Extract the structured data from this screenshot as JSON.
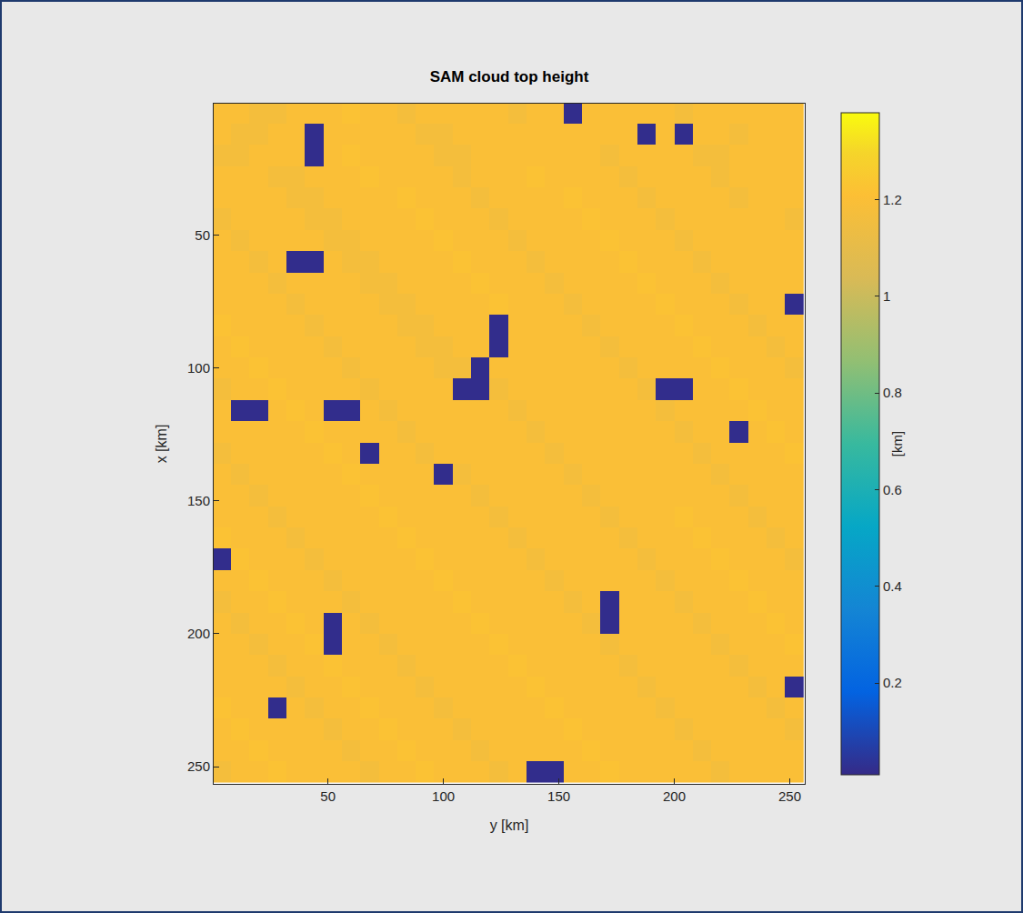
{
  "chart_data": {
    "type": "heatmap",
    "title": "SAM cloud top height",
    "xlabel": "y [km]",
    "ylabel": "x [km]",
    "xlim": [
      0.5,
      256.5
    ],
    "ylim": [
      256.5,
      0.5
    ],
    "xticks": [
      50,
      100,
      150,
      200,
      250
    ],
    "yticks": [
      50,
      100,
      150,
      200,
      250
    ],
    "x": [
      4,
      12,
      20,
      28,
      36,
      44,
      52,
      60,
      68,
      76,
      84,
      92,
      100,
      108,
      116,
      124,
      132,
      140,
      148,
      156,
      164,
      172,
      180,
      188,
      196,
      204,
      212,
      220,
      228,
      236,
      244,
      252
    ],
    "y": [
      4,
      12,
      20,
      28,
      36,
      44,
      52,
      60,
      68,
      76,
      84,
      92,
      100,
      108,
      116,
      124,
      132,
      140,
      148,
      156,
      164,
      172,
      180,
      188,
      196,
      204,
      212,
      220,
      228,
      236,
      244,
      252
    ],
    "cells": [
      [
        1.2,
        1.2,
        1.17,
        1.17,
        1.2,
        1.2,
        1.2,
        1.22,
        1.2,
        1.2,
        1.17,
        1.2,
        1.2,
        1.2,
        1.2,
        1.2,
        1.17,
        1.2,
        1.2,
        0.02,
        1.2,
        1.2,
        1.2,
        1.2,
        1.2,
        1.17,
        1.2,
        1.2,
        1.2,
        1.2,
        1.2,
        1.2
      ],
      [
        1.2,
        1.17,
        1.17,
        1.2,
        1.2,
        0.02,
        1.2,
        1.2,
        1.2,
        1.2,
        1.2,
        1.17,
        1.17,
        1.2,
        1.2,
        1.2,
        1.2,
        1.2,
        1.2,
        1.2,
        1.2,
        1.2,
        1.2,
        0.02,
        1.2,
        0.02,
        1.2,
        1.2,
        1.17,
        1.2,
        1.2,
        1.2
      ],
      [
        1.17,
        1.17,
        1.2,
        1.2,
        1.2,
        0.02,
        1.2,
        1.22,
        1.2,
        1.2,
        1.2,
        1.2,
        1.17,
        1.17,
        1.2,
        1.2,
        1.2,
        1.2,
        1.2,
        1.2,
        1.2,
        1.17,
        1.2,
        1.2,
        1.2,
        1.2,
        1.17,
        1.17,
        1.2,
        1.2,
        1.2,
        1.2
      ],
      [
        1.2,
        1.2,
        1.2,
        1.17,
        1.17,
        1.2,
        1.2,
        1.2,
        1.22,
        1.2,
        1.2,
        1.2,
        1.2,
        1.17,
        1.2,
        1.2,
        1.2,
        1.22,
        1.2,
        1.2,
        1.2,
        1.2,
        1.17,
        1.2,
        1.2,
        1.2,
        1.2,
        1.17,
        1.2,
        1.2,
        1.2,
        1.2
      ],
      [
        1.2,
        1.2,
        1.2,
        1.2,
        1.17,
        1.17,
        1.2,
        1.2,
        1.2,
        1.2,
        1.22,
        1.2,
        1.2,
        1.2,
        1.17,
        1.2,
        1.2,
        1.2,
        1.2,
        1.22,
        1.2,
        1.2,
        1.2,
        1.17,
        1.2,
        1.2,
        1.2,
        1.2,
        1.17,
        1.2,
        1.2,
        1.2
      ],
      [
        1.17,
        1.2,
        1.2,
        1.2,
        1.2,
        1.17,
        1.17,
        1.2,
        1.2,
        1.2,
        1.2,
        1.22,
        1.2,
        1.2,
        1.2,
        1.17,
        1.2,
        1.2,
        1.2,
        1.2,
        1.22,
        1.2,
        1.2,
        1.2,
        1.17,
        1.2,
        1.2,
        1.2,
        1.2,
        1.2,
        1.2,
        1.17
      ],
      [
        1.2,
        1.17,
        1.2,
        1.2,
        1.2,
        1.2,
        1.17,
        1.17,
        1.2,
        1.2,
        1.2,
        1.2,
        1.22,
        1.2,
        1.2,
        1.2,
        1.17,
        1.2,
        1.2,
        1.2,
        1.2,
        1.22,
        1.2,
        1.2,
        1.2,
        1.17,
        1.2,
        1.2,
        1.2,
        1.2,
        1.2,
        1.2
      ],
      [
        1.2,
        1.2,
        1.17,
        1.2,
        0.02,
        0.02,
        1.2,
        1.17,
        1.17,
        1.2,
        1.2,
        1.2,
        1.2,
        1.22,
        1.2,
        1.2,
        1.2,
        1.17,
        1.2,
        1.2,
        1.2,
        1.2,
        1.22,
        1.2,
        1.2,
        1.2,
        1.17,
        1.2,
        1.2,
        1.2,
        1.2,
        1.2
      ],
      [
        1.2,
        1.2,
        1.2,
        1.17,
        1.2,
        1.2,
        1.2,
        1.2,
        1.17,
        1.17,
        1.2,
        1.2,
        1.2,
        1.2,
        1.22,
        1.2,
        1.2,
        1.2,
        1.17,
        1.2,
        1.2,
        1.2,
        1.2,
        1.22,
        1.2,
        1.2,
        1.2,
        1.17,
        1.2,
        1.2,
        1.2,
        1.2
      ],
      [
        1.2,
        1.2,
        1.2,
        1.2,
        1.17,
        1.2,
        1.2,
        1.2,
        1.2,
        1.17,
        1.17,
        1.2,
        1.2,
        1.2,
        1.2,
        1.22,
        1.2,
        1.2,
        1.2,
        1.17,
        1.2,
        1.2,
        1.2,
        1.2,
        1.22,
        1.2,
        1.2,
        1.2,
        1.17,
        1.2,
        1.2,
        0.02
      ],
      [
        1.22,
        1.2,
        1.2,
        1.2,
        1.2,
        1.17,
        1.2,
        1.2,
        1.2,
        1.2,
        1.17,
        1.17,
        1.2,
        1.2,
        1.2,
        0.02,
        1.2,
        1.2,
        1.2,
        1.2,
        1.17,
        1.2,
        1.2,
        1.2,
        1.2,
        1.22,
        1.2,
        1.2,
        1.2,
        1.17,
        1.2,
        1.2
      ],
      [
        1.2,
        1.22,
        1.2,
        1.2,
        1.2,
        1.2,
        1.17,
        1.2,
        1.2,
        1.2,
        1.2,
        1.17,
        1.17,
        1.2,
        1.2,
        0.02,
        1.2,
        1.2,
        1.2,
        1.2,
        1.2,
        1.17,
        1.2,
        1.2,
        1.2,
        1.2,
        1.22,
        1.2,
        1.2,
        1.2,
        1.17,
        1.2
      ],
      [
        1.2,
        1.2,
        1.22,
        1.2,
        1.2,
        1.2,
        1.2,
        1.17,
        1.2,
        1.2,
        1.2,
        1.2,
        1.17,
        1.17,
        0.02,
        1.2,
        1.2,
        1.2,
        1.2,
        1.2,
        1.2,
        1.2,
        1.17,
        1.2,
        1.2,
        1.2,
        1.2,
        1.22,
        1.2,
        1.2,
        1.2,
        1.17
      ],
      [
        1.17,
        1.2,
        1.2,
        1.22,
        1.2,
        1.2,
        1.2,
        1.2,
        1.17,
        1.2,
        1.2,
        1.2,
        1.2,
        0.02,
        0.02,
        1.17,
        1.2,
        1.2,
        1.2,
        1.2,
        1.2,
        1.2,
        1.2,
        1.17,
        0.02,
        0.02,
        1.2,
        1.2,
        1.22,
        1.2,
        1.2,
        1.2
      ],
      [
        1.2,
        0.02,
        0.02,
        1.2,
        1.22,
        1.2,
        0.02,
        0.02,
        1.2,
        1.17,
        1.2,
        1.2,
        1.2,
        1.2,
        1.2,
        1.2,
        1.17,
        1.2,
        1.2,
        1.2,
        1.2,
        1.2,
        1.2,
        1.2,
        1.17,
        1.2,
        1.2,
        1.2,
        1.2,
        1.22,
        1.2,
        1.2
      ],
      [
        1.2,
        1.2,
        1.2,
        1.2,
        1.2,
        1.22,
        1.2,
        1.2,
        1.2,
        1.2,
        1.17,
        1.2,
        1.2,
        1.2,
        1.2,
        1.2,
        1.2,
        1.17,
        1.2,
        1.2,
        1.2,
        1.2,
        1.2,
        1.2,
        1.2,
        1.17,
        1.2,
        1.2,
        0.02,
        1.2,
        1.22,
        1.2
      ],
      [
        1.17,
        1.2,
        1.2,
        1.2,
        1.2,
        1.2,
        1.22,
        1.2,
        0.02,
        1.2,
        1.2,
        1.17,
        1.2,
        1.2,
        1.2,
        1.2,
        1.2,
        1.2,
        1.17,
        1.2,
        1.2,
        1.2,
        1.2,
        1.2,
        1.2,
        1.2,
        1.17,
        1.2,
        1.2,
        1.2,
        1.2,
        1.22
      ],
      [
        1.2,
        1.17,
        1.2,
        1.2,
        1.2,
        1.2,
        1.2,
        1.22,
        1.2,
        1.2,
        1.2,
        1.2,
        0.02,
        1.17,
        1.2,
        1.2,
        1.2,
        1.2,
        1.2,
        1.17,
        1.2,
        1.2,
        1.2,
        1.2,
        1.2,
        1.2,
        1.2,
        1.17,
        1.2,
        1.2,
        1.2,
        1.2
      ],
      [
        1.2,
        1.2,
        1.17,
        1.2,
        1.2,
        1.2,
        1.2,
        1.2,
        1.22,
        1.2,
        1.2,
        1.2,
        1.2,
        1.2,
        1.17,
        1.2,
        1.2,
        1.2,
        1.2,
        1.2,
        1.17,
        1.2,
        1.2,
        1.2,
        1.2,
        1.2,
        1.2,
        1.2,
        1.17,
        1.2,
        1.2,
        1.2
      ],
      [
        1.2,
        1.2,
        1.2,
        1.17,
        1.2,
        1.2,
        1.2,
        1.2,
        1.2,
        1.22,
        1.2,
        1.2,
        1.2,
        1.2,
        1.2,
        1.17,
        1.2,
        1.2,
        1.2,
        1.2,
        1.2,
        1.17,
        1.2,
        1.2,
        1.2,
        1.22,
        1.2,
        1.2,
        1.2,
        1.17,
        1.2,
        1.2
      ],
      [
        1.22,
        1.2,
        1.2,
        1.2,
        1.17,
        1.2,
        1.2,
        1.2,
        1.2,
        1.2,
        1.22,
        1.2,
        1.2,
        1.2,
        1.2,
        1.2,
        1.17,
        1.2,
        1.2,
        1.2,
        1.2,
        1.2,
        1.17,
        1.2,
        1.2,
        1.2,
        1.22,
        1.2,
        1.2,
        1.2,
        1.17,
        1.2
      ],
      [
        0.02,
        1.22,
        1.2,
        1.2,
        1.2,
        1.17,
        1.2,
        1.2,
        1.2,
        1.2,
        1.2,
        1.22,
        1.2,
        1.2,
        1.2,
        1.2,
        1.2,
        1.17,
        1.2,
        1.2,
        1.2,
        1.2,
        1.2,
        1.17,
        1.2,
        1.2,
        1.2,
        1.22,
        1.2,
        1.2,
        1.2,
        1.17
      ],
      [
        1.2,
        1.2,
        1.22,
        1.2,
        1.2,
        1.2,
        1.17,
        1.2,
        1.2,
        1.2,
        1.2,
        1.2,
        1.22,
        1.2,
        1.2,
        1.2,
        1.2,
        1.2,
        1.17,
        1.2,
        1.2,
        1.2,
        1.2,
        1.2,
        1.17,
        1.2,
        1.2,
        1.2,
        1.22,
        1.2,
        1.2,
        1.2
      ],
      [
        1.17,
        1.2,
        1.2,
        1.22,
        1.2,
        1.2,
        1.2,
        1.17,
        1.2,
        1.2,
        1.2,
        1.2,
        1.2,
        1.22,
        1.2,
        1.2,
        1.2,
        1.2,
        1.2,
        1.17,
        1.2,
        0.02,
        1.2,
        1.2,
        1.2,
        1.17,
        1.2,
        1.2,
        1.2,
        1.22,
        1.2,
        1.2
      ],
      [
        1.2,
        1.17,
        1.2,
        1.2,
        1.22,
        1.2,
        0.02,
        1.2,
        1.17,
        1.2,
        1.2,
        1.2,
        1.2,
        1.2,
        1.22,
        1.2,
        1.2,
        1.2,
        1.2,
        1.2,
        1.17,
        0.02,
        1.2,
        1.2,
        1.2,
        1.2,
        1.17,
        1.2,
        1.2,
        1.2,
        1.22,
        1.2
      ],
      [
        1.2,
        1.2,
        1.17,
        1.2,
        1.2,
        1.22,
        0.02,
        1.2,
        1.2,
        1.17,
        1.2,
        1.2,
        1.2,
        1.2,
        1.2,
        1.22,
        1.2,
        1.2,
        1.2,
        1.2,
        1.2,
        1.17,
        1.2,
        1.2,
        1.2,
        1.2,
        1.2,
        1.17,
        1.2,
        1.2,
        1.2,
        1.22
      ],
      [
        1.2,
        1.2,
        1.2,
        1.17,
        1.2,
        1.2,
        1.22,
        1.2,
        1.2,
        1.2,
        1.17,
        1.2,
        1.2,
        1.2,
        1.2,
        1.2,
        1.22,
        1.2,
        1.2,
        1.2,
        1.2,
        1.2,
        1.17,
        1.2,
        1.2,
        1.2,
        1.2,
        1.2,
        1.17,
        1.2,
        1.2,
        1.2
      ],
      [
        1.2,
        1.2,
        1.2,
        1.2,
        1.17,
        1.2,
        1.2,
        1.22,
        1.2,
        1.2,
        1.2,
        1.17,
        1.2,
        1.2,
        1.2,
        1.2,
        1.2,
        1.22,
        1.2,
        1.2,
        1.2,
        1.2,
        1.2,
        1.17,
        1.2,
        1.2,
        1.2,
        1.2,
        1.2,
        1.17,
        1.2,
        0.02
      ],
      [
        1.22,
        1.2,
        1.2,
        0.02,
        1.2,
        1.17,
        1.2,
        1.2,
        1.22,
        1.2,
        1.2,
        1.2,
        1.17,
        1.2,
        1.2,
        1.2,
        1.2,
        1.2,
        1.22,
        1.2,
        1.2,
        1.2,
        1.2,
        1.2,
        1.17,
        1.2,
        1.2,
        1.2,
        1.2,
        1.2,
        1.17,
        1.2
      ],
      [
        1.2,
        1.22,
        1.2,
        1.2,
        1.2,
        1.2,
        1.17,
        1.2,
        1.2,
        1.22,
        1.2,
        1.2,
        1.2,
        1.17,
        1.2,
        1.2,
        1.2,
        1.2,
        1.2,
        1.22,
        1.2,
        1.2,
        1.2,
        1.2,
        1.2,
        1.17,
        1.2,
        1.2,
        1.2,
        1.2,
        1.2,
        1.17
      ],
      [
        1.2,
        1.2,
        1.22,
        1.2,
        1.2,
        1.2,
        1.2,
        1.17,
        1.2,
        1.2,
        1.22,
        1.2,
        1.2,
        1.2,
        1.17,
        1.2,
        1.2,
        1.2,
        1.2,
        1.2,
        1.22,
        1.2,
        1.2,
        1.2,
        1.2,
        1.2,
        1.17,
        1.2,
        1.2,
        1.2,
        1.2,
        1.2
      ],
      [
        1.17,
        1.2,
        1.2,
        1.22,
        1.2,
        1.2,
        1.2,
        1.2,
        1.17,
        1.2,
        1.2,
        1.22,
        1.2,
        1.2,
        1.2,
        1.17,
        1.2,
        0.02,
        0.02,
        1.2,
        1.2,
        1.22,
        1.2,
        1.2,
        1.2,
        1.2,
        1.2,
        1.17,
        1.2,
        1.2,
        1.2,
        1.2
      ]
    ],
    "colorbar": {
      "title": "[km]",
      "range": [
        0.01,
        1.38
      ],
      "ticks": [
        0.2,
        0.4,
        0.6,
        0.8,
        1,
        1.2
      ]
    }
  }
}
